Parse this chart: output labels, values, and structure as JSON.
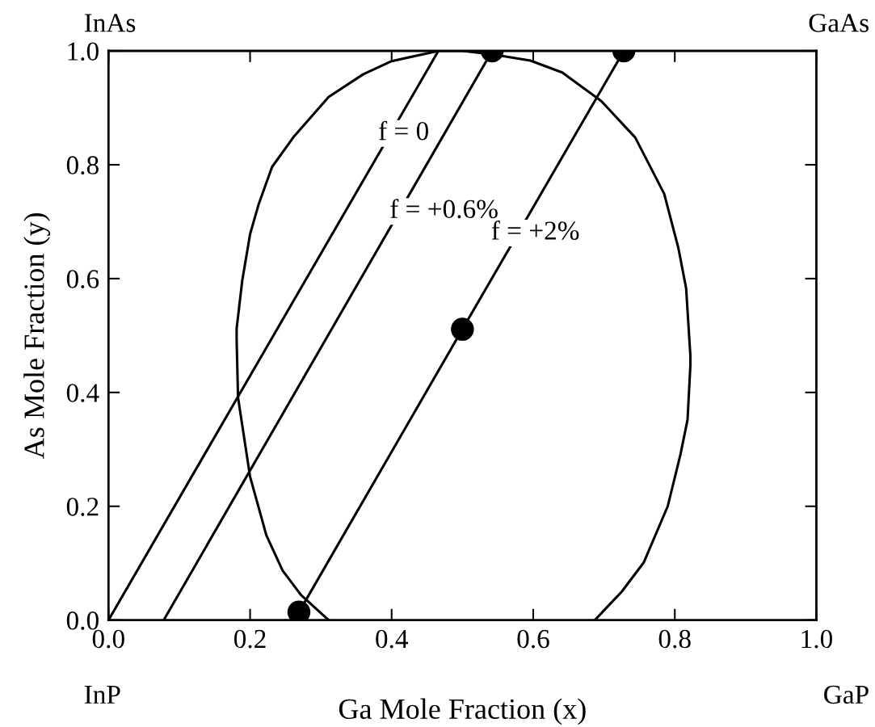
{
  "chart_data": {
    "type": "line",
    "xlabel": "Ga Mole Fraction (x)",
    "ylabel": "As Mole Fraction (y)",
    "xlim": [
      0,
      1.0
    ],
    "ylim": [
      0,
      1.0
    ],
    "xticks": [
      {
        "value": 0,
        "label": "0.0"
      },
      {
        "value": 0.2,
        "label": "0.2"
      },
      {
        "value": 0.4,
        "label": "0.4"
      },
      {
        "value": 0.6,
        "label": "0.6"
      },
      {
        "value": 0.8,
        "label": "0.8"
      },
      {
        "value": 1.0,
        "label": "1.0"
      }
    ],
    "yticks": [
      {
        "value": 0,
        "label": "0.0"
      },
      {
        "value": 0.2,
        "label": "0.2"
      },
      {
        "value": 0.4,
        "label": "0.4"
      },
      {
        "value": 0.6,
        "label": "0.6"
      },
      {
        "value": 0.8,
        "label": "0.8"
      },
      {
        "value": 1.0,
        "label": "1.0"
      }
    ],
    "grid": false,
    "legend": false,
    "line_style": "solid",
    "series": [
      {
        "color": "#000000",
        "marker": "none",
        "x": [
          0.311,
          0.272,
          0.246,
          0.223,
          0.2,
          0.183,
          0.181,
          0.181,
          0.189,
          0.2,
          0.212,
          0.231,
          0.261,
          0.311,
          0.36,
          0.4,
          0.466,
          0.5,
          0.542,
          0.596,
          0.641,
          0.696,
          0.744,
          0.785,
          0.805,
          0.816,
          0.822,
          0.822,
          0.818,
          0.808,
          0.79,
          0.756,
          0.725,
          0.687
        ],
        "values": [
          0.0,
          0.044,
          0.087,
          0.149,
          0.252,
          0.391,
          0.494,
          0.512,
          0.597,
          0.678,
          0.73,
          0.796,
          0.848,
          0.919,
          0.959,
          0.982,
          1.0,
          1.0,
          0.994,
          0.983,
          0.962,
          0.912,
          0.848,
          0.749,
          0.654,
          0.583,
          0.465,
          0.447,
          0.352,
          0.291,
          0.2,
          0.101,
          0.05,
          0.0
        ]
      },
      {
        "color": "#000000",
        "marker": "none",
        "x": [
          0.0,
          0.466
        ],
        "values": [
          0.0,
          1.0
        ]
      },
      {
        "color": "#000000",
        "marker": "none",
        "x": [
          0.078,
          0.542
        ],
        "values": [
          0.0,
          1.0
        ]
      },
      {
        "color": "#000000",
        "marker": "none",
        "x": [
          0.269,
          0.5,
          0.728
        ],
        "values": [
          0.014,
          0.511,
          1.0
        ]
      },
      {
        "type": "scatter",
        "color": "#000000",
        "marker": "circle",
        "x": [
          0.269,
          0.5,
          0.542,
          0.728
        ],
        "values": [
          0.014,
          0.511,
          1.0,
          1.0
        ]
      }
    ],
    "annotations": [
      "f = 0",
      "f = +0.6%",
      "f = +2%",
      "InAs",
      "GaAs",
      "InP",
      "GaP"
    ]
  }
}
